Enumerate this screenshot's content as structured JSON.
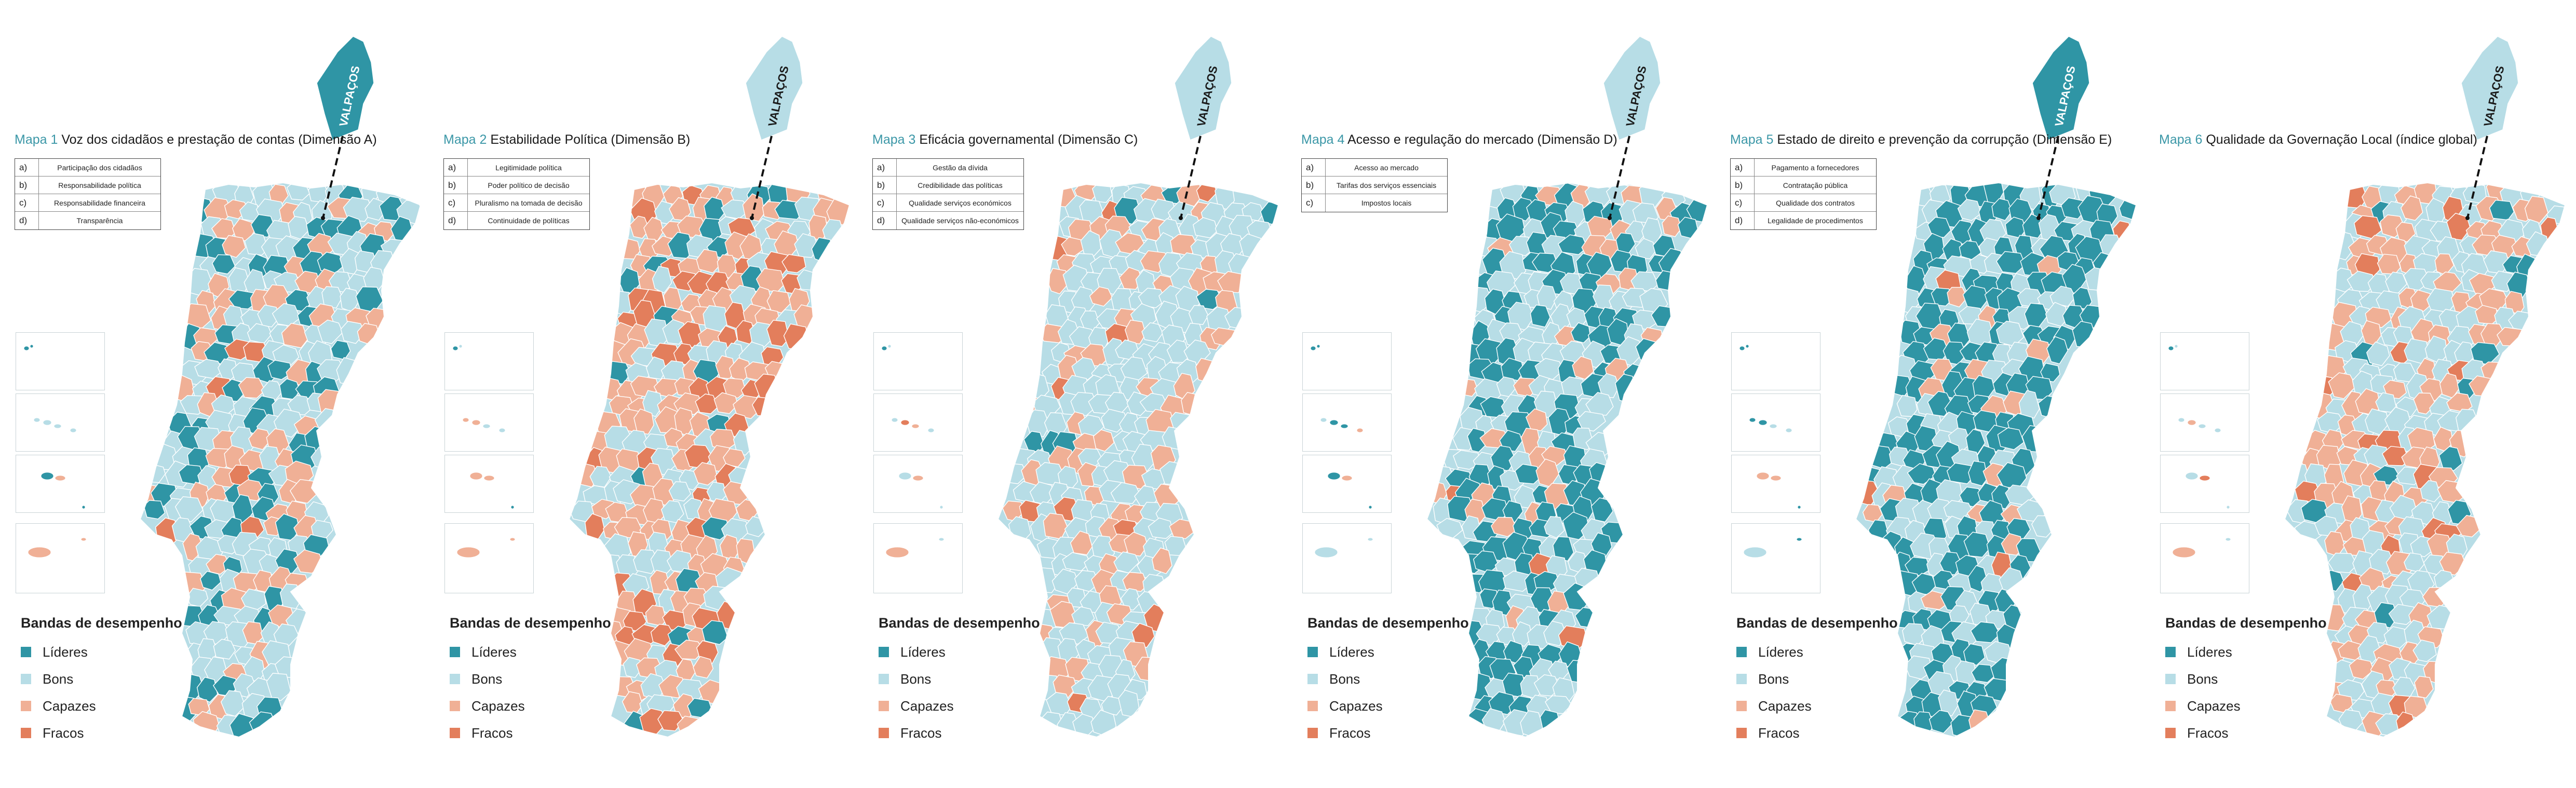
{
  "colors": {
    "lideres": "#2f95a5",
    "bons": "#b7dde6",
    "capazes": "#f0b096",
    "fracos": "#e37e5c"
  },
  "region_label": "VALPAÇOS",
  "maps": [
    {
      "number": "Mapa 1",
      "title": "Voz dos cidadãos e prestação de contas (Dimensão A)",
      "subindicators": [
        {
          "letter": "a)",
          "text": "Participação dos cidadãos"
        },
        {
          "letter": "b)",
          "text": "Responsabilidade política"
        },
        {
          "letter": "c)",
          "text": "Responsabilidade financeira"
        },
        {
          "letter": "d)",
          "text": "Transparência"
        }
      ],
      "region_class": "lideres",
      "mix": [
        0.22,
        0.5,
        0.25,
        0.03
      ]
    },
    {
      "number": "Mapa 2",
      "title": "Estabilidade Política (Dimensão B)",
      "subindicators": [
        {
          "letter": "a)",
          "text": "Legitimidade política"
        },
        {
          "letter": "b)",
          "text": "Poder político de decisão"
        },
        {
          "letter": "c)",
          "text": "Pluralismo na tomada de decisão"
        },
        {
          "letter": "d)",
          "text": "Continuidade de políticas"
        }
      ],
      "region_class": "bons",
      "mix": [
        0.08,
        0.25,
        0.5,
        0.17
      ]
    },
    {
      "number": "Mapa 3",
      "title": "Eficácia governamental (Dimensão C)",
      "subindicators": [
        {
          "letter": "a)",
          "text": "Gestão da dívida"
        },
        {
          "letter": "b)",
          "text": "Credibilidade das políticas"
        },
        {
          "letter": "c)",
          "text": "Qualidade serviços económicos"
        },
        {
          "letter": "d)",
          "text": "Qualidade serviços não-económicos"
        }
      ],
      "region_class": "bons",
      "mix": [
        0.02,
        0.62,
        0.3,
        0.06
      ]
    },
    {
      "number": "Mapa 4",
      "title": "Acesso e regulação do mercado (Dimensão D)",
      "subindicators": [
        {
          "letter": "a)",
          "text": "Acesso ao mercado"
        },
        {
          "letter": "b)",
          "text": "Tarifas dos serviços essenciais"
        },
        {
          "letter": "c)",
          "text": "Impostos locais"
        }
      ],
      "region_class": "bons",
      "mix": [
        0.5,
        0.35,
        0.13,
        0.02
      ]
    },
    {
      "number": "Mapa 5",
      "title": "Estado de direito e prevenção da corrupção (Dimensão E)",
      "subindicators": [
        {
          "letter": "a)",
          "text": "Pagamento a fornecedores"
        },
        {
          "letter": "b)",
          "text": "Contratação pública"
        },
        {
          "letter": "c)",
          "text": "Qualidade dos contratos"
        },
        {
          "letter": "d)",
          "text": "Legalidade de procedimentos"
        }
      ],
      "region_class": "lideres",
      "mix": [
        0.62,
        0.28,
        0.08,
        0.02
      ]
    },
    {
      "number": "Mapa 6",
      "title": "Qualidade da Governação Local (índice global)",
      "subindicators": [],
      "region_class": "bons",
      "mix": [
        0.05,
        0.45,
        0.42,
        0.08
      ]
    }
  ],
  "legend": {
    "title": "Bandas de desempenho",
    "items": [
      {
        "key": "lideres",
        "label": "Líderes"
      },
      {
        "key": "bons",
        "label": "Bons"
      },
      {
        "key": "capazes",
        "label": "Capazes"
      },
      {
        "key": "fracos",
        "label": "Fracos"
      }
    ]
  }
}
